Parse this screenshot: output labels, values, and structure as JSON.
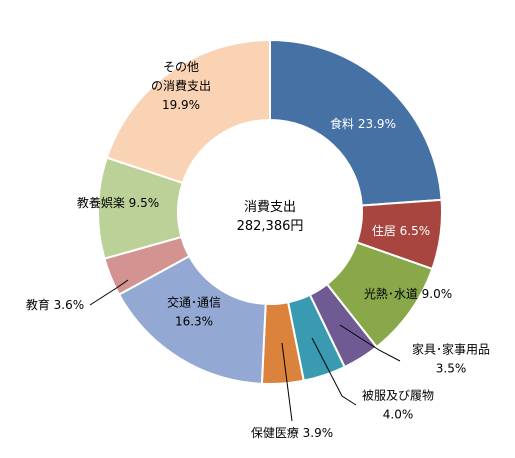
{
  "chart_data": {
    "type": "pie",
    "variant": "donut",
    "center_label": {
      "title": "消費支出",
      "value": "282,386円"
    },
    "slices": [
      {
        "name": "食料",
        "value": 23.9,
        "label_lines": [
          "食料 23.9%"
        ],
        "color": "#4571A4"
      },
      {
        "name": "住居",
        "value": 6.5,
        "label_lines": [
          "住居 6.5%"
        ],
        "color": "#A9453F"
      },
      {
        "name": "光熱・水道",
        "value": 9.0,
        "label_lines": [
          "光熱･水道 9.0%"
        ],
        "color": "#88A84A"
      },
      {
        "name": "家具・家事用品",
        "value": 3.5,
        "label_lines": [
          "家具･家事用品",
          "3.5%"
        ],
        "color": "#6F5A93"
      },
      {
        "name": "被服及び履物",
        "value": 4.0,
        "label_lines": [
          "被服及び履物",
          "4.0%"
        ],
        "color": "#3A9AB1"
      },
      {
        "name": "保健医療",
        "value": 3.9,
        "label_lines": [
          "保健医療 3.9%"
        ],
        "color": "#DB833C"
      },
      {
        "name": "交通・通信",
        "value": 16.3,
        "label_lines": [
          "交通･通信",
          "16.3%"
        ],
        "color": "#93A9D3"
      },
      {
        "name": "教育",
        "value": 3.6,
        "label_lines": [
          "教育 3.6%"
        ],
        "color": "#D29391"
      },
      {
        "name": "教養娯楽",
        "value": 9.5,
        "label_lines": [
          "教養娯楽 9.5%"
        ],
        "color": "#BCD197"
      },
      {
        "name": "その他の消費支出",
        "value": 19.9,
        "label_lines": [
          "その他",
          "の消費支出",
          "19.9%"
        ],
        "color": "#FAD2B4"
      }
    ]
  }
}
